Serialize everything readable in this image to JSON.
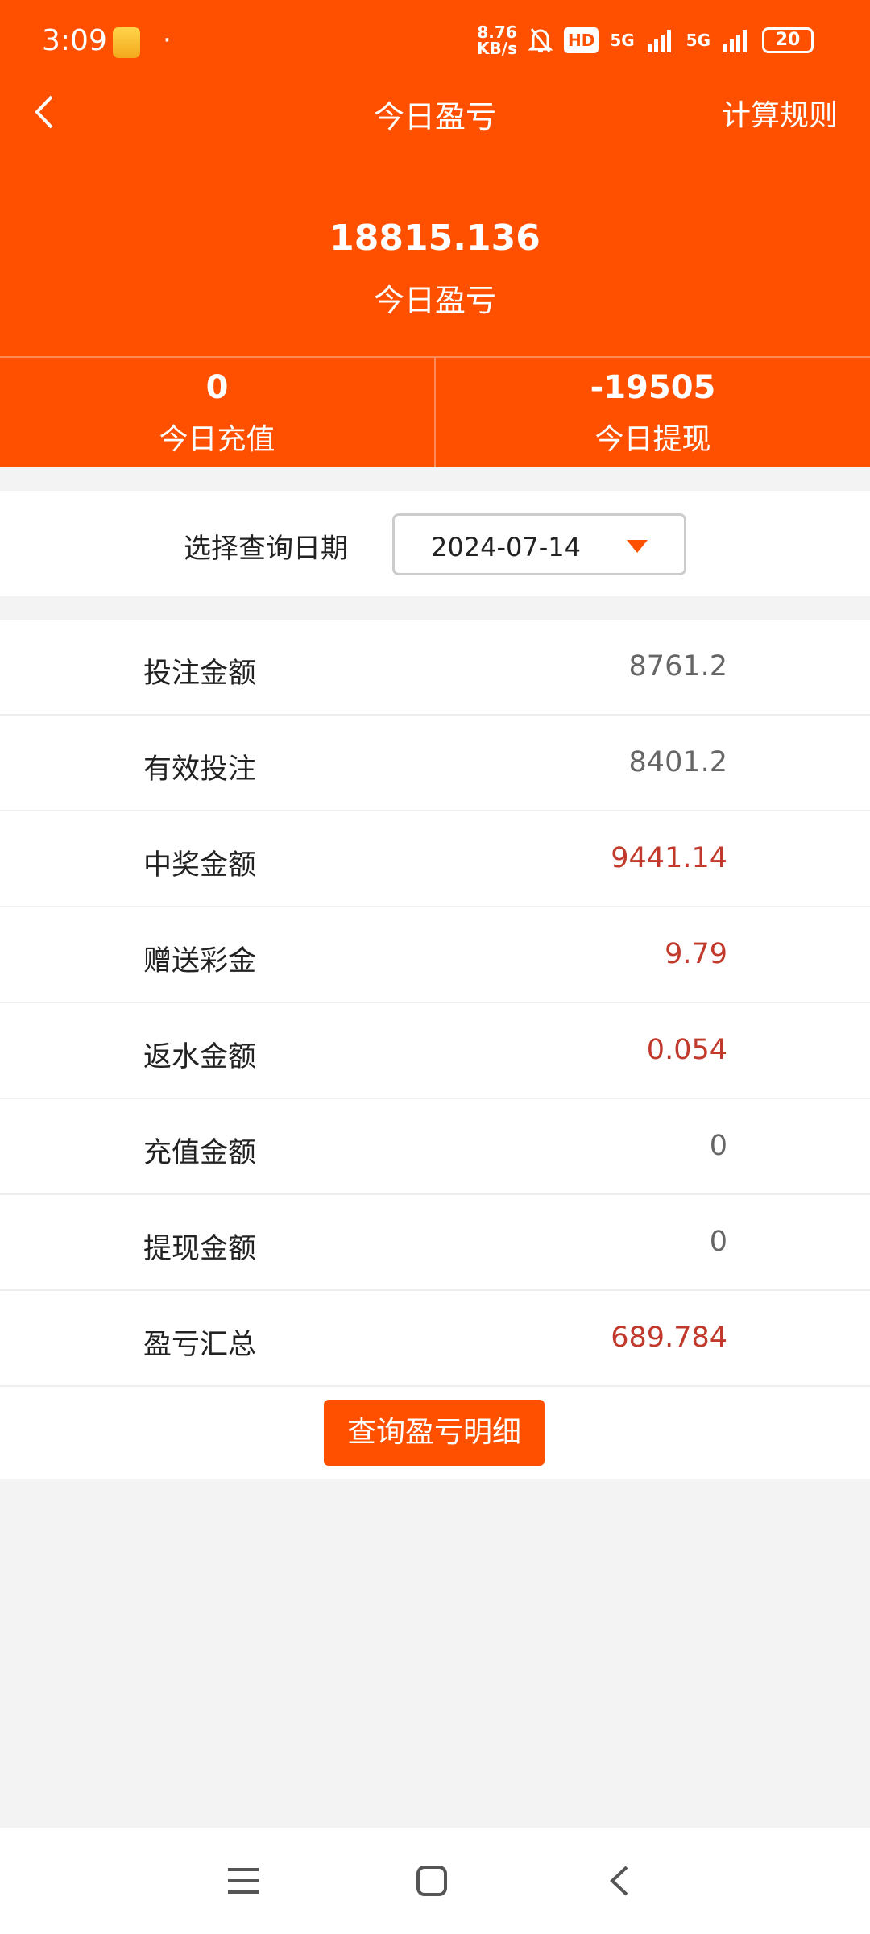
{
  "status_bar": {
    "time": "3:09",
    "dot": "·",
    "speed_top": "8.76",
    "speed_bottom": "KB/s",
    "hd": "HD",
    "net1": "5G",
    "net2": "5G",
    "battery": "20"
  },
  "header": {
    "title": "今日盈亏",
    "rules": "计算规则"
  },
  "summary": {
    "value": "18815.136",
    "label": "今日盈亏"
  },
  "stats": [
    {
      "value": "0",
      "label": "今日充值"
    },
    {
      "value": "-19505",
      "label": "今日提现"
    }
  ],
  "date": {
    "label": "选择查询日期",
    "value": "2024-07-14"
  },
  "rows": [
    {
      "label": "投注金额",
      "value": "8761.2",
      "red": false
    },
    {
      "label": "有效投注",
      "value": "8401.2",
      "red": false
    },
    {
      "label": "中奖金额",
      "value": "9441.14",
      "red": true
    },
    {
      "label": "赠送彩金",
      "value": "9.79",
      "red": true
    },
    {
      "label": "返水金额",
      "value": "0.054",
      "red": true
    },
    {
      "label": "充值金额",
      "value": "0",
      "red": false
    },
    {
      "label": "提现金额",
      "value": "0",
      "red": false
    },
    {
      "label": "盈亏汇总",
      "value": "689.784",
      "red": true
    }
  ],
  "button": "查询盈亏明细",
  "colors": {
    "accent": "#ff5000",
    "red_value": "#c0392b"
  }
}
